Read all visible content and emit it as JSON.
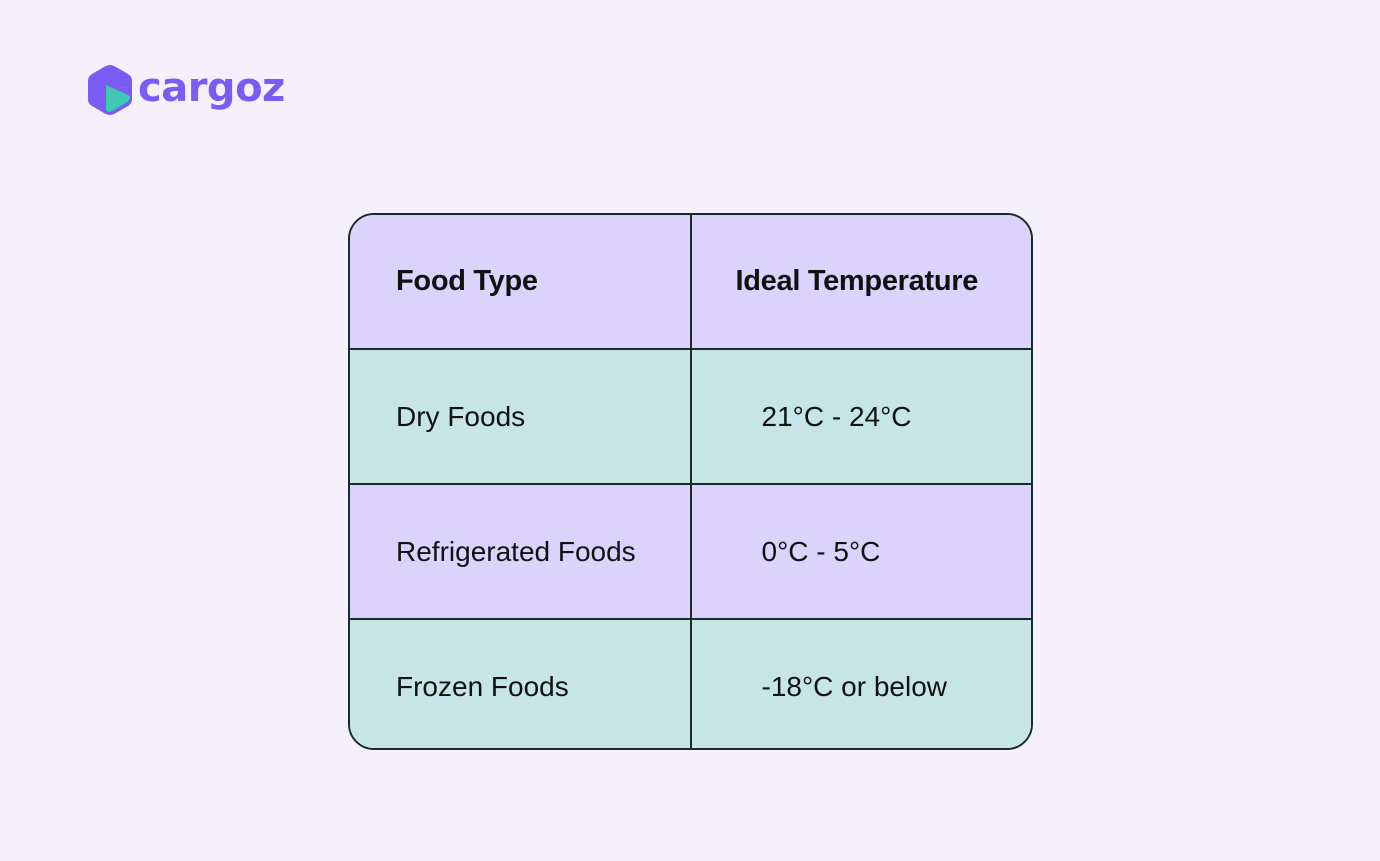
{
  "brand": {
    "name": "cargoz",
    "logo_icon": "cargoz-hexagon-icon",
    "colors": {
      "purple": "#7a5cf5",
      "teal": "#3ec9b2"
    }
  },
  "table": {
    "headers": [
      "Food Type",
      "Ideal Temperature"
    ],
    "rows": [
      {
        "food": "Dry Foods",
        "temp": "21°C - 24°C"
      },
      {
        "food": "Refrigerated Foods",
        "temp": "0°C - 5°C"
      },
      {
        "food": "Frozen Foods",
        "temp": "-18°C or below"
      }
    ],
    "colors": {
      "header_bg": "#dcd3fc",
      "row_purple_bg": "#dcd3fc",
      "row_teal_bg": "#c6e5e7",
      "border": "#1a2a2a",
      "page_bg": "#f4f1fd"
    }
  }
}
